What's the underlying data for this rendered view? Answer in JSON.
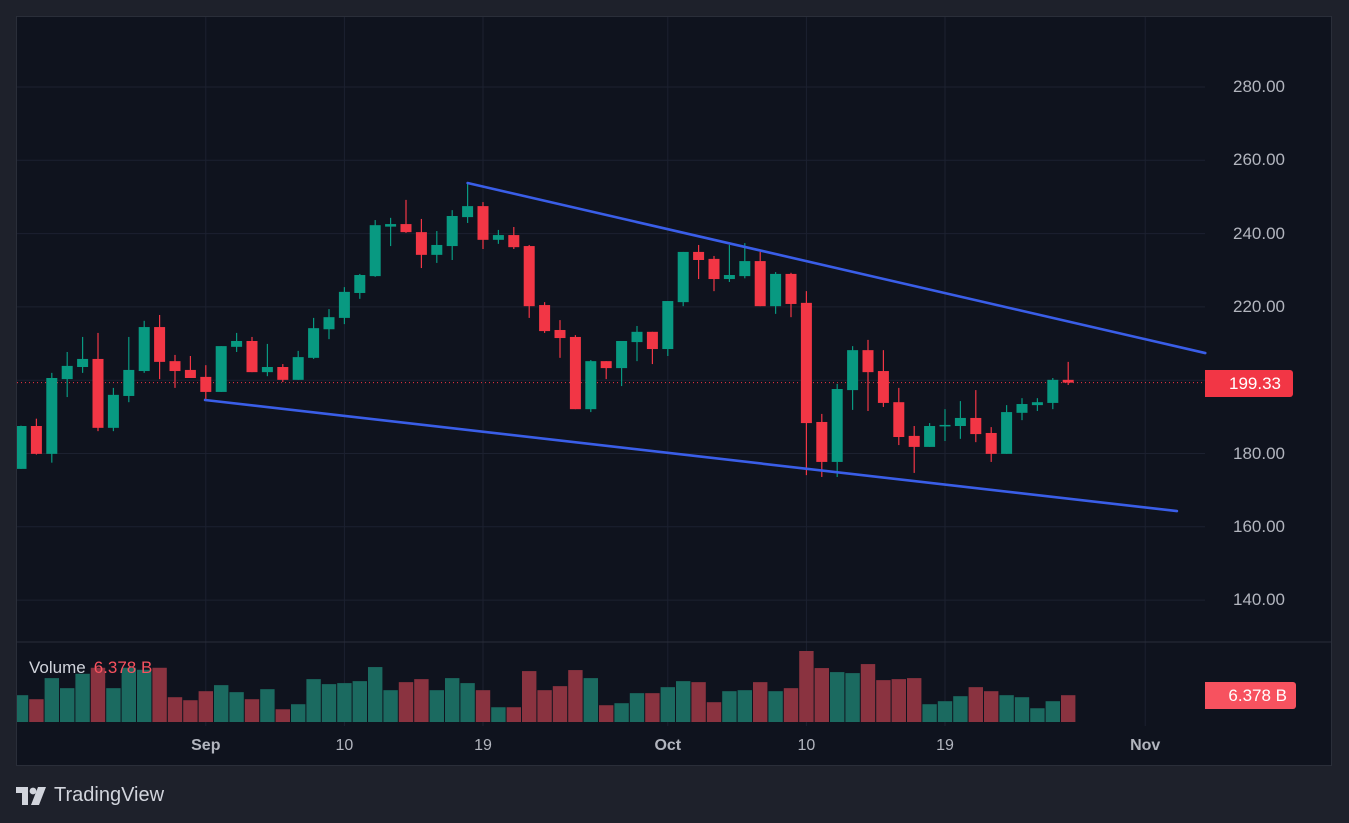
{
  "branding": {
    "logo_text": "TradingView"
  },
  "colors": {
    "up": "#089981",
    "down": "#f23645",
    "vol_up": "#1b6a60",
    "vol_down": "#8a3340",
    "trendline": "#3a5ee8",
    "last_price": "#f23645",
    "volume_badge": "#f7525f"
  },
  "volume_legend": {
    "title": "Volume",
    "value": "6.378 B"
  },
  "price_label": "199.33",
  "volume_label": "6.378 B",
  "chart_data": {
    "type": "candlestick",
    "y_range": [
      126.3,
      299.0
    ],
    "y_ticks": [
      "280.00",
      "260.00",
      "240.00",
      "220.00",
      "200.00",
      "180.00",
      "160.00",
      "140.00"
    ],
    "y_tick_values": [
      280,
      260,
      240,
      220,
      200,
      180,
      160,
      140
    ],
    "y_ticks_shown": [
      true,
      true,
      true,
      true,
      false,
      true,
      true,
      true
    ],
    "x_ticks": [
      {
        "label": "Sep",
        "index": 12,
        "bold": true
      },
      {
        "label": "10",
        "index": 21
      },
      {
        "label": "19",
        "index": 30
      },
      {
        "label": "Oct",
        "index": 42,
        "bold": true
      },
      {
        "label": "10",
        "index": 51
      },
      {
        "label": "19",
        "index": 60
      },
      {
        "label": "Nov",
        "index": 73,
        "bold": true
      }
    ],
    "last_price": 199.33,
    "volume_unit": "B",
    "ohlc": [
      [
        175.8,
        187.6,
        175.8,
        187.5
      ],
      [
        187.5,
        189.5,
        179.7,
        179.9
      ],
      [
        179.9,
        202.0,
        177.5,
        200.6
      ],
      [
        200.3,
        207.7,
        195.4,
        203.9
      ],
      [
        203.6,
        211.8,
        202.0,
        205.8
      ],
      [
        205.8,
        212.9,
        186.1,
        187.0
      ],
      [
        187.0,
        197.9,
        186.1,
        196.0
      ],
      [
        195.7,
        211.8,
        194.0,
        202.8
      ],
      [
        202.5,
        216.2,
        202.0,
        214.5
      ],
      [
        214.5,
        217.8,
        200.3,
        205.0
      ],
      [
        205.2,
        206.9,
        197.9,
        202.5
      ],
      [
        202.8,
        206.6,
        200.6,
        200.6
      ],
      [
        200.9,
        204.1,
        194.6,
        196.8
      ],
      [
        196.8,
        209.3,
        196.8,
        209.3
      ],
      [
        209.1,
        212.9,
        207.7,
        210.7
      ],
      [
        210.7,
        211.8,
        202.2,
        202.2
      ],
      [
        202.2,
        209.9,
        201.1,
        203.6
      ],
      [
        203.6,
        204.4,
        199.5,
        200.1
      ],
      [
        200.1,
        208.0,
        200.1,
        206.3
      ],
      [
        206.1,
        217.0,
        205.8,
        214.2
      ],
      [
        213.9,
        219.4,
        211.2,
        217.2
      ],
      [
        217.0,
        225.4,
        215.3,
        224.1
      ],
      [
        223.8,
        229.0,
        222.2,
        228.7
      ],
      [
        228.4,
        243.7,
        228.2,
        242.3
      ],
      [
        241.9,
        244.3,
        236.6,
        242.6
      ],
      [
        242.6,
        249.2,
        240.2,
        240.4
      ],
      [
        240.4,
        244.0,
        230.6,
        234.2
      ],
      [
        234.2,
        240.7,
        232.0,
        236.9
      ],
      [
        236.6,
        246.4,
        232.8,
        244.8
      ],
      [
        244.5,
        253.8,
        242.9,
        247.5
      ],
      [
        247.5,
        248.6,
        235.8,
        238.3
      ],
      [
        238.3,
        241.0,
        237.2,
        239.6
      ],
      [
        239.6,
        241.8,
        235.8,
        236.3
      ],
      [
        236.6,
        236.9,
        217.0,
        220.2
      ],
      [
        220.5,
        221.3,
        212.9,
        213.4
      ],
      [
        213.7,
        216.4,
        206.1,
        211.5
      ],
      [
        211.8,
        212.3,
        192.1,
        192.1
      ],
      [
        192.1,
        205.5,
        191.3,
        205.2
      ],
      [
        205.2,
        205.2,
        200.3,
        203.3
      ],
      [
        203.3,
        210.7,
        198.4,
        210.7
      ],
      [
        210.4,
        214.8,
        205.2,
        213.2
      ],
      [
        213.2,
        213.2,
        204.4,
        208.5
      ],
      [
        208.5,
        221.6,
        206.6,
        221.6
      ],
      [
        221.3,
        235.0,
        220.2,
        235.0
      ],
      [
        235.0,
        236.9,
        227.6,
        232.8
      ],
      [
        233.1,
        233.9,
        224.3,
        227.6
      ],
      [
        227.6,
        236.9,
        226.8,
        228.7
      ],
      [
        228.4,
        237.4,
        227.8,
        232.5
      ],
      [
        232.5,
        235.0,
        220.2,
        220.2
      ],
      [
        220.2,
        229.5,
        218.1,
        229.0
      ],
      [
        229.0,
        229.3,
        217.2,
        220.8
      ],
      [
        221.1,
        224.3,
        174.1,
        188.3
      ],
      [
        188.6,
        190.8,
        173.6,
        177.7
      ],
      [
        177.7,
        199.0,
        173.6,
        197.6
      ],
      [
        197.3,
        209.3,
        191.9,
        208.2
      ],
      [
        208.2,
        211.0,
        191.6,
        202.2
      ],
      [
        202.5,
        208.2,
        192.7,
        193.8
      ],
      [
        194.0,
        197.9,
        182.3,
        184.5
      ],
      [
        184.8,
        187.5,
        174.7,
        181.8
      ],
      [
        181.8,
        188.3,
        181.8,
        187.5
      ],
      [
        187.6,
        192.1,
        183.4,
        187.8
      ],
      [
        187.5,
        194.3,
        184.0,
        189.7
      ],
      [
        189.7,
        197.3,
        183.1,
        185.3
      ],
      [
        185.6,
        187.2,
        177.7,
        179.9
      ],
      [
        179.9,
        193.2,
        179.9,
        191.3
      ],
      [
        191.1,
        195.1,
        189.1,
        193.5
      ],
      [
        193.2,
        195.1,
        191.6,
        194.0
      ],
      [
        193.8,
        200.6,
        192.1,
        200.1
      ],
      [
        200.1,
        205.0,
        198.7,
        199.33
      ]
    ],
    "volume": [
      6.38,
      5.42,
      10.44,
      8.05,
      11.47,
      12.9,
      8.05,
      12.9,
      12.42,
      12.9,
      5.9,
      5.18,
      7.33,
      8.77,
      7.1,
      5.42,
      7.81,
      3.03,
      4.23,
      10.2,
      9.01,
      9.25,
      9.72,
      13.07,
      7.57,
      9.48,
      10.2,
      7.57,
      10.44,
      9.25,
      7.57,
      3.51,
      3.51,
      12.11,
      7.57,
      8.53,
      12.35,
      10.44,
      3.99,
      4.47,
      6.86,
      6.86,
      8.29,
      9.72,
      9.48,
      4.71,
      7.33,
      7.57,
      9.48,
      7.33,
      8.05,
      16.89,
      12.83,
      11.87,
      11.63,
      13.78,
      9.96,
      10.2,
      10.44,
      4.23,
      4.95,
      6.14,
      8.29,
      7.33,
      6.38,
      5.9,
      3.27,
      4.95,
      6.378
    ],
    "trendlines": [
      {
        "name": "upper",
        "from": {
          "index": 29,
          "price": 253.8
        },
        "to": {
          "index": 76.9,
          "price": 207.4
        }
      },
      {
        "name": "lower",
        "from": {
          "index": 11.95,
          "price": 194.6
        },
        "to": {
          "index": 75.06,
          "price": 164.3
        }
      }
    ]
  }
}
